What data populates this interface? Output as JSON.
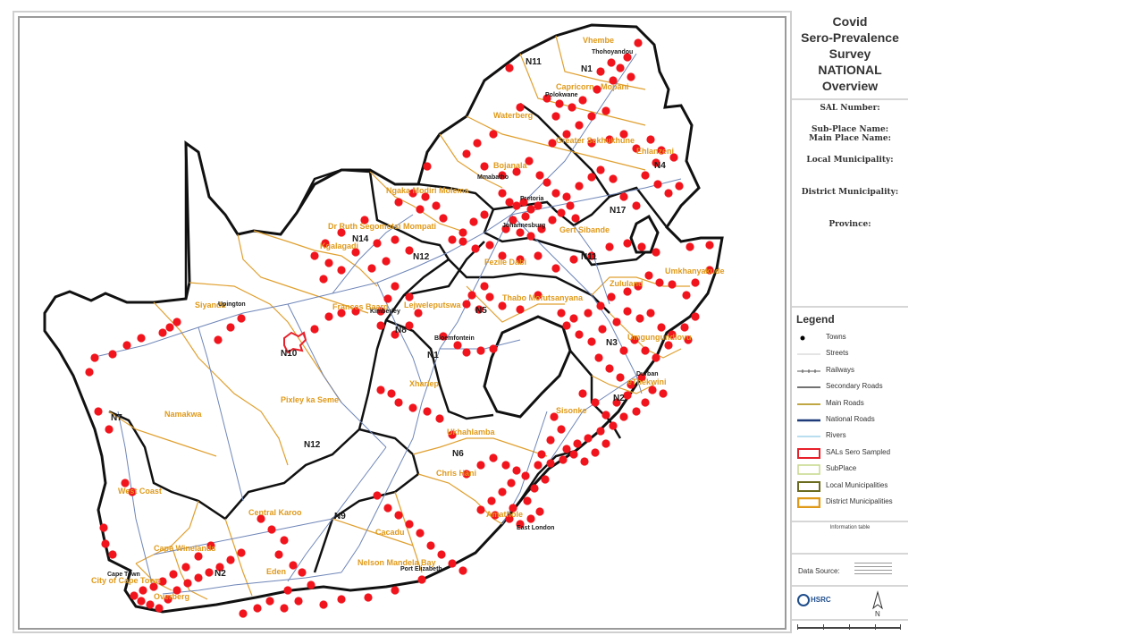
{
  "title": {
    "line1": "Covid",
    "line2": "Sero-Prevalence",
    "line3": "Survey",
    "line4": "NATIONAL",
    "line5": "Overview"
  },
  "info": {
    "sal_number": "SAL Number:",
    "sub_place_name": "Sub-Place Name:",
    "main_place_name": "Main Place Name:",
    "local_municipality": "Local Municipality:",
    "district_municipality": "District Municipality:",
    "province": "Province:"
  },
  "legend": {
    "heading": "Legend",
    "items": [
      {
        "label": "Towns",
        "icon": "town-dot-icon"
      },
      {
        "label": "Streets",
        "icon": "street-line-icon"
      },
      {
        "label": "Railways",
        "icon": "railway-line-icon"
      },
      {
        "label": "Secondary Roads",
        "icon": "secondary-road-icon"
      },
      {
        "label": "Main Roads",
        "icon": "main-road-icon"
      },
      {
        "label": "National Roads",
        "icon": "national-road-icon"
      },
      {
        "label": "Rivers",
        "icon": "river-icon"
      },
      {
        "label": "SALs Sero Sampled",
        "icon": "sero-sampled-box-icon"
      },
      {
        "label": "SubPlace",
        "icon": "subplace-box-icon"
      },
      {
        "label": "Local Municipalities",
        "icon": "local-muni-box-icon"
      },
      {
        "label": "District Municipalities",
        "icon": "district-muni-box-icon"
      }
    ],
    "colors": {
      "town": "#000000",
      "street": "#c8c8c8",
      "railway": "#555555",
      "secondary_road": "#444444",
      "main_road": "#b89a2a",
      "national_road": "#1f3b7a",
      "river": "#8ec9e8",
      "sero_sampled": "#e8202a",
      "subplace": "#c6d98a",
      "local_muni": "#6b6b1e",
      "district_muni": "#e09a1a"
    }
  },
  "info_table_label": "Information table",
  "data_source_label": "Data Source:",
  "logo": {
    "org": "HSRC",
    "north_letter": "N"
  },
  "map": {
    "colors": {
      "province_border": "#111111",
      "municipal_border": "#e0a030",
      "road": "#6f86b8",
      "sample_point": "#f2141c"
    },
    "municipality_labels": [
      "Vhembe",
      "Capricorn",
      "Mopani",
      "Waterberg",
      "Greater Sekhukhune",
      "Ehlanzeni",
      "Bojanala",
      "Ngaka Modiri Molema",
      "Dr Ruth Segomotsi Mompati",
      "Gert Sibande",
      "Fezile Dabi",
      "Lejweleputswa",
      "Thabo Mofutsanyana",
      "Umkhanyakude",
      "Zululand",
      "Frances Baard",
      "Siyanda",
      "Namakwa",
      "Pixley ka Seme",
      "Xhariep",
      "Ukhahlamba",
      "Chris Hani",
      "Amathole",
      "Cacadu",
      "Nelson Mandela Bay",
      "Central Karoo",
      "Eden",
      "Cape Winelands",
      "City of Cape Town",
      "Overberg",
      "West Coast",
      "Kgalagadi",
      "Umgungundlovu",
      "eThekwini",
      "Sisonke"
    ],
    "road_labels": [
      "N11",
      "N1",
      "N4",
      "N17",
      "N14",
      "N12",
      "N10",
      "N8",
      "N5",
      "N3",
      "N2",
      "N6",
      "N9",
      "N7",
      "N11",
      "N1",
      "N12",
      "N2"
    ],
    "town_labels": [
      "Thohoyandou",
      "Polokwane",
      "Mmabatho",
      "Kimberley",
      "Bloemfontein",
      "Cape Town",
      "Port Elizabeth",
      "Pretoria",
      "Johannesburg",
      "Upington",
      "Durban",
      "East London"
    ]
  }
}
